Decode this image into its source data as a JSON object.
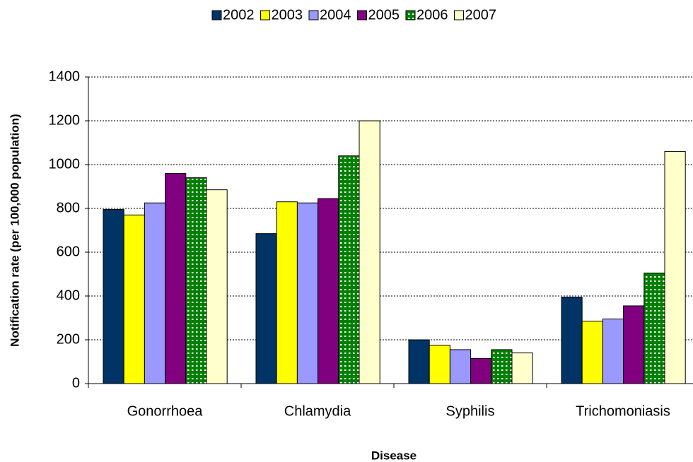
{
  "chart_data": {
    "type": "bar",
    "x_label": "Disease",
    "y_label": "Notification rate (per 100,000 population)",
    "categories": [
      "Gonorrhoea",
      "Chlamydia",
      "Syphilis",
      "Trichomoniasis"
    ],
    "series": [
      {
        "name": "2002",
        "color": "#003366",
        "values": [
          795,
          685,
          200,
          395
        ]
      },
      {
        "name": "2003",
        "color": "#ffff00",
        "values": [
          770,
          830,
          175,
          285
        ]
      },
      {
        "name": "2004",
        "color": "#9999ff",
        "values": [
          825,
          825,
          155,
          295
        ]
      },
      {
        "name": "2005",
        "color": "#800080",
        "values": [
          960,
          845,
          115,
          355
        ]
      },
      {
        "name": "2006",
        "color": "#008000",
        "pattern": "dots",
        "values": [
          940,
          1040,
          155,
          505
        ]
      },
      {
        "name": "2007",
        "color": "#ffffcc",
        "values": [
          885,
          1200,
          140,
          1060
        ]
      }
    ],
    "ylim": [
      0,
      1400
    ],
    "yticks": [
      0,
      200,
      400,
      600,
      800,
      1000,
      1200,
      1400
    ],
    "grid": true,
    "legend": "top"
  }
}
